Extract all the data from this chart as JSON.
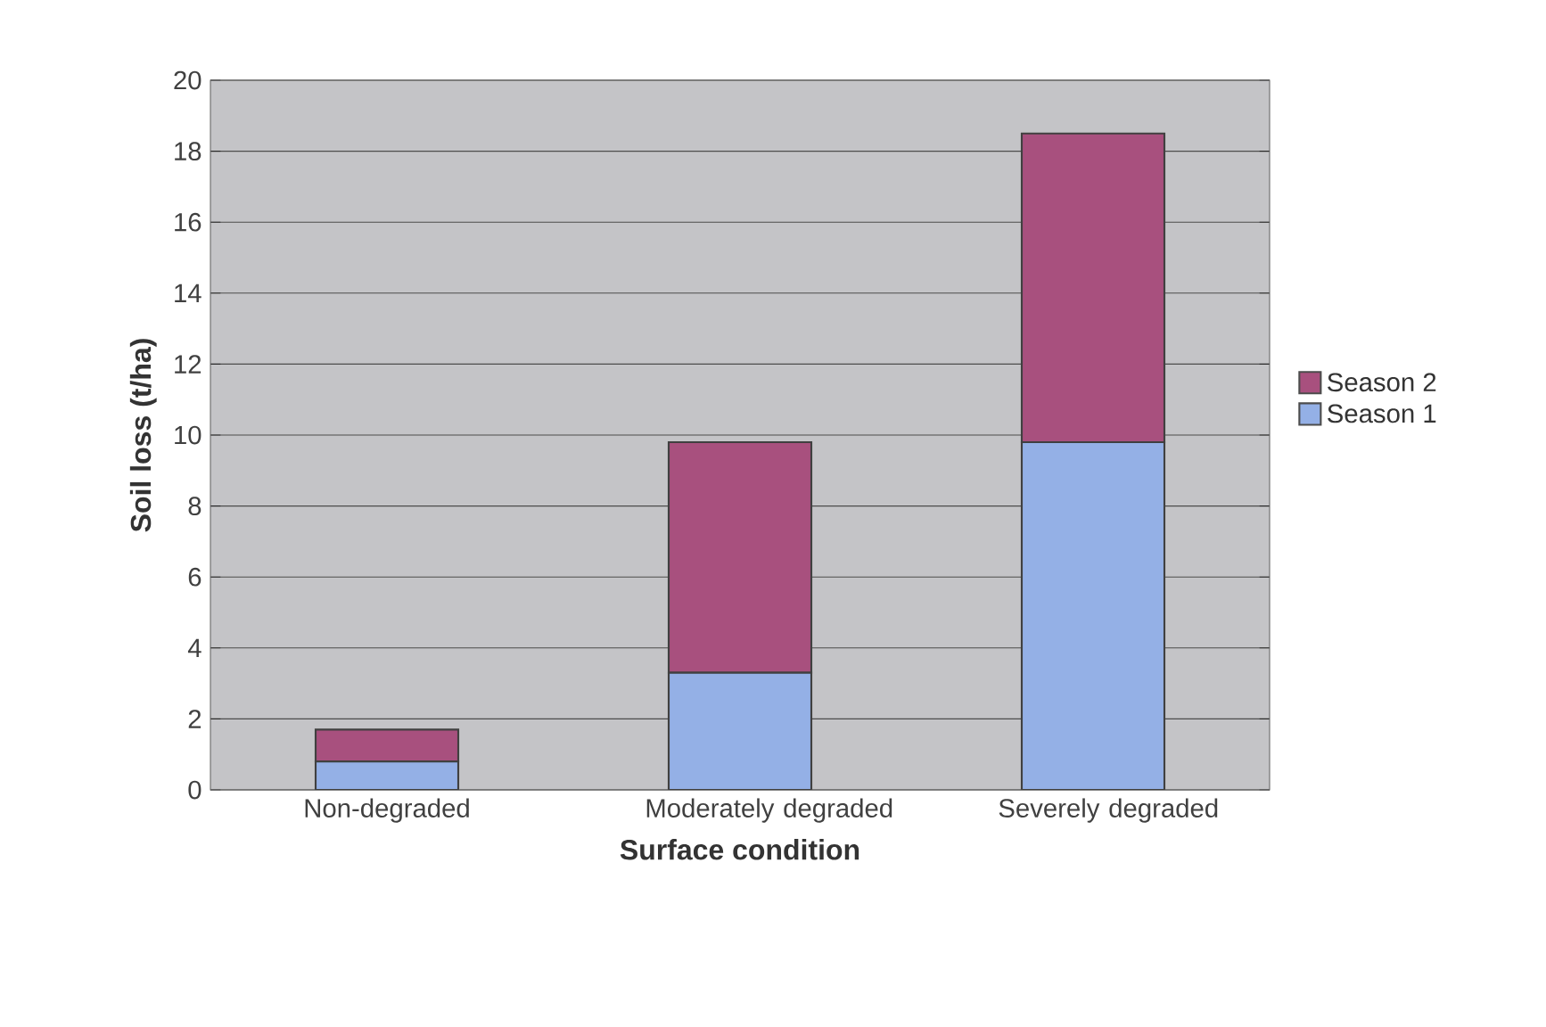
{
  "chart_data": {
    "type": "bar",
    "stacked": true,
    "xlabel": "Surface condition",
    "ylabel": "Soil loss (t/ha)",
    "categories": [
      "Non-degraded",
      "Moderately degraded",
      "Severely degraded"
    ],
    "series": [
      {
        "name": "Season 1",
        "color": "#94b0e6",
        "values": [
          0.8,
          3.3,
          9.8
        ]
      },
      {
        "name": "Season 2",
        "color": "#a8507e",
        "values": [
          0.9,
          6.5,
          8.7
        ]
      }
    ],
    "ylim": [
      0,
      20
    ],
    "yticks": [
      0,
      2,
      4,
      6,
      8,
      10,
      12,
      14,
      16,
      18,
      20
    ],
    "grid": "y",
    "legend": "right"
  }
}
